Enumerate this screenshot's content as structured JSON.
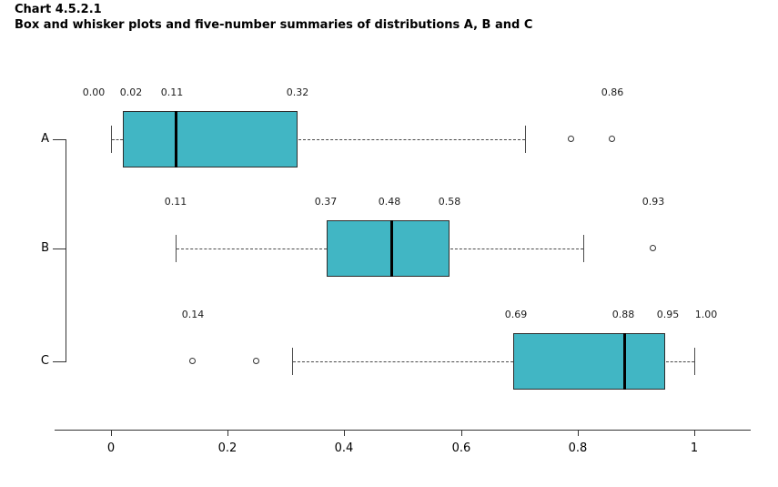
{
  "header": {
    "chart_number": "Chart 4.5.2.1",
    "title": "Box and whisker plots and five-number summaries of distributions A, B and C"
  },
  "colors": {
    "box_fill": "#41b6c4",
    "box_border": "#2d2d2d",
    "median": "#000000",
    "whisker": "#4a4a4a",
    "outlier": "#333333",
    "axis": "#333333",
    "label_text": "#1c1c1c"
  },
  "chart_data": {
    "type": "boxplot",
    "orientation": "horizontal",
    "title": "Chart 4.5.2.1",
    "subtitle": "Box and whisker plots and five-number summaries of distributions A, B and C",
    "xlim": [
      0,
      1
    ],
    "grid": false,
    "x_ticks": [
      {
        "value": 0.0,
        "label": "0"
      },
      {
        "value": 0.2,
        "label": "0.2"
      },
      {
        "value": 0.4,
        "label": "0.4"
      },
      {
        "value": 0.6,
        "label": "0.6"
      },
      {
        "value": 0.8,
        "label": "0.8"
      },
      {
        "value": 1.0,
        "label": "1"
      }
    ],
    "series": [
      {
        "category": "A",
        "five_number_summary": {
          "min": 0.0,
          "q1": 0.02,
          "median": 0.11,
          "q3": 0.32,
          "max": 0.86
        },
        "whisker_low": 0.0,
        "whisker_high": 0.71,
        "outliers": [
          0.79,
          0.86
        ],
        "value_labels": [
          {
            "text": "0.00",
            "x": -0.03
          },
          {
            "text": "0.02",
            "x": 0.035
          },
          {
            "text": "0.11",
            "x": 0.105
          },
          {
            "text": "0.32",
            "x": 0.32
          },
          {
            "text": "0.86",
            "x": 0.86
          }
        ]
      },
      {
        "category": "B",
        "five_number_summary": {
          "min": 0.11,
          "q1": 0.37,
          "median": 0.48,
          "q3": 0.58,
          "max": 0.93
        },
        "whisker_low": 0.11,
        "whisker_high": 0.81,
        "outliers": [
          0.93
        ],
        "value_labels": [
          {
            "text": "0.11",
            "x": 0.11
          },
          {
            "text": "0.37",
            "x": 0.368
          },
          {
            "text": "0.48",
            "x": 0.477
          },
          {
            "text": "0.58",
            "x": 0.58
          },
          {
            "text": "0.93",
            "x": 0.93
          }
        ]
      },
      {
        "category": "C",
        "five_number_summary": {
          "min": 0.14,
          "q1": 0.69,
          "median": 0.88,
          "q3": 0.95,
          "max": 1.0
        },
        "whisker_low": 0.31,
        "whisker_high": 1.0,
        "outliers": [
          0.14,
          0.25
        ],
        "value_labels": [
          {
            "text": "0.14",
            "x": 0.14
          },
          {
            "text": "0.69",
            "x": 0.695
          },
          {
            "text": "0.88",
            "x": 0.878
          },
          {
            "text": "0.95",
            "x": 0.955
          },
          {
            "text": "1.00",
            "x": 1.02
          }
        ]
      }
    ]
  }
}
